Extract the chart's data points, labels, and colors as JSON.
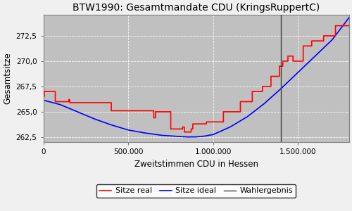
{
  "title": "BTW1990: Gesamtmandate CDU (KringsRuppertC)",
  "xlabel": "Zweitstimmen CDU in Hessen",
  "ylabel": "Gesamtsitze",
  "plot_bg_color": "#c0c0c0",
  "fig_bg_color": "#f0f0f0",
  "wahlergebnis_x": 1400000,
  "xlim": [
    0,
    1800000
  ],
  "ylim": [
    262.0,
    274.6
  ],
  "yticks": [
    262.5,
    265.0,
    267.5,
    270.0,
    272.5
  ],
  "ytick_labels": [
    "262,5",
    "265,0",
    "267,5",
    "270,0",
    "272,5"
  ],
  "xticks": [
    0,
    500000,
    1000000,
    1500000
  ],
  "xtick_labels": [
    "0",
    "500.000",
    "1.000.000",
    "1.500.000"
  ],
  "legend_labels": [
    "Sitze real",
    "Sitze ideal",
    "Wahlergebnis"
  ],
  "ideal_x": [
    0,
    100000,
    200000,
    300000,
    400000,
    500000,
    600000,
    700000,
    800000,
    850000,
    900000,
    950000,
    1000000,
    1100000,
    1200000,
    1300000,
    1400000,
    1500000,
    1600000,
    1700000,
    1800000
  ],
  "ideal_y": [
    266.15,
    265.7,
    265.0,
    264.3,
    263.7,
    263.2,
    262.9,
    262.67,
    262.56,
    262.51,
    262.52,
    262.6,
    262.75,
    263.5,
    264.5,
    265.8,
    267.3,
    268.9,
    270.5,
    272.1,
    274.3
  ],
  "real_x": [
    0,
    5000,
    5001,
    70000,
    70001,
    150000,
    150001,
    155000,
    155001,
    400000,
    400001,
    650000,
    650001,
    660000,
    660001,
    750000,
    750001,
    820000,
    820001,
    830000,
    830001,
    870000,
    870001,
    880000,
    880001,
    960000,
    960001,
    1060000,
    1060001,
    1160000,
    1160001,
    1230000,
    1230001,
    1290000,
    1290001,
    1340000,
    1340001,
    1390000,
    1390001,
    1410000,
    1410001,
    1440000,
    1440001,
    1470000,
    1470001,
    1530000,
    1530001,
    1580000,
    1580001,
    1650000,
    1650001,
    1720000,
    1720001,
    1800000
  ],
  "real_y": [
    266.5,
    266.5,
    267.0,
    267.0,
    266.0,
    266.0,
    266.2,
    266.2,
    265.9,
    265.9,
    265.1,
    265.1,
    264.4,
    264.4,
    265.0,
    265.0,
    263.3,
    263.3,
    263.5,
    263.5,
    263.0,
    263.0,
    263.3,
    263.3,
    263.8,
    263.8,
    264.0,
    264.0,
    265.0,
    265.0,
    266.0,
    266.0,
    267.0,
    267.0,
    267.5,
    267.5,
    268.5,
    268.5,
    269.5,
    269.5,
    270.0,
    270.0,
    270.5,
    270.5,
    270.0,
    270.0,
    271.5,
    271.5,
    272.0,
    272.0,
    272.5,
    272.5,
    273.5,
    273.5
  ]
}
